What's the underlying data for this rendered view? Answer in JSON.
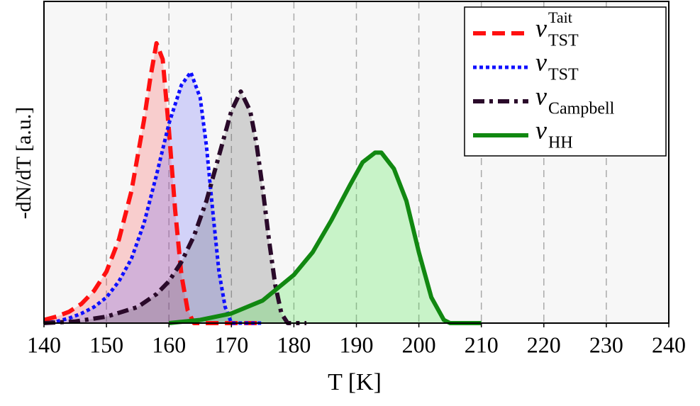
{
  "chart_data": {
    "type": "line",
    "xlabel": "T [K]",
    "ylabel": "-dN/dT [a.u.]",
    "xlim": [
      140,
      240
    ],
    "xticks": [
      140,
      150,
      160,
      170,
      180,
      190,
      200,
      210,
      220,
      230,
      240
    ],
    "ylim": [
      0,
      1
    ],
    "grid": true,
    "legend": "upper right",
    "series": [
      {
        "name": "ν",
        "subscript": "TST",
        "superscript": "Tait",
        "color": "#ff1010",
        "fill": "rgba(255,60,60,0.22)",
        "style": "dashed",
        "x": [
          140,
          142,
          144,
          146,
          148,
          150,
          152,
          154,
          156,
          157,
          158,
          159,
          160,
          161,
          162,
          163,
          164,
          170,
          175
        ],
        "values": [
          0.01,
          0.02,
          0.035,
          0.06,
          0.1,
          0.16,
          0.26,
          0.41,
          0.63,
          0.76,
          0.87,
          0.82,
          0.6,
          0.35,
          0.15,
          0.04,
          0,
          0,
          0
        ]
      },
      {
        "name": "ν",
        "subscript": "TST",
        "color": "#1010ff",
        "fill": "rgba(80,80,255,0.22)",
        "style": "dotted",
        "x": [
          140,
          142,
          144,
          146,
          148,
          150,
          152,
          154,
          156,
          158,
          160,
          162,
          163.5,
          165,
          166,
          167,
          168,
          169,
          170,
          175
        ],
        "values": [
          0,
          0.005,
          0.015,
          0.03,
          0.05,
          0.08,
          0.13,
          0.2,
          0.31,
          0.46,
          0.62,
          0.74,
          0.78,
          0.7,
          0.55,
          0.35,
          0.16,
          0.05,
          0,
          0
        ]
      },
      {
        "name": "ν",
        "subscript": "Campbell",
        "color": "#2a0a2a",
        "fill": "rgba(60,60,60,0.2)",
        "style": "dashdot",
        "x": [
          140,
          145,
          150,
          155,
          158,
          160,
          162,
          164,
          166,
          168,
          170,
          171.5,
          173,
          174,
          175,
          176,
          177,
          178,
          179,
          182
        ],
        "values": [
          0,
          0.005,
          0.02,
          0.05,
          0.09,
          0.13,
          0.19,
          0.27,
          0.38,
          0.52,
          0.66,
          0.72,
          0.66,
          0.56,
          0.42,
          0.26,
          0.12,
          0.03,
          0,
          0
        ]
      },
      {
        "name": "ν",
        "subscript": "HH",
        "color": "#118811",
        "fill": "rgba(60,230,60,0.25)",
        "style": "solid",
        "x": [
          160,
          165,
          170,
          175,
          180,
          183,
          186,
          189,
          191,
          193,
          194,
          196,
          198,
          200,
          202,
          204,
          205,
          210
        ],
        "values": [
          0,
          0.01,
          0.03,
          0.07,
          0.15,
          0.22,
          0.32,
          0.43,
          0.5,
          0.53,
          0.53,
          0.48,
          0.38,
          0.22,
          0.08,
          0.01,
          0,
          0
        ]
      }
    ]
  }
}
